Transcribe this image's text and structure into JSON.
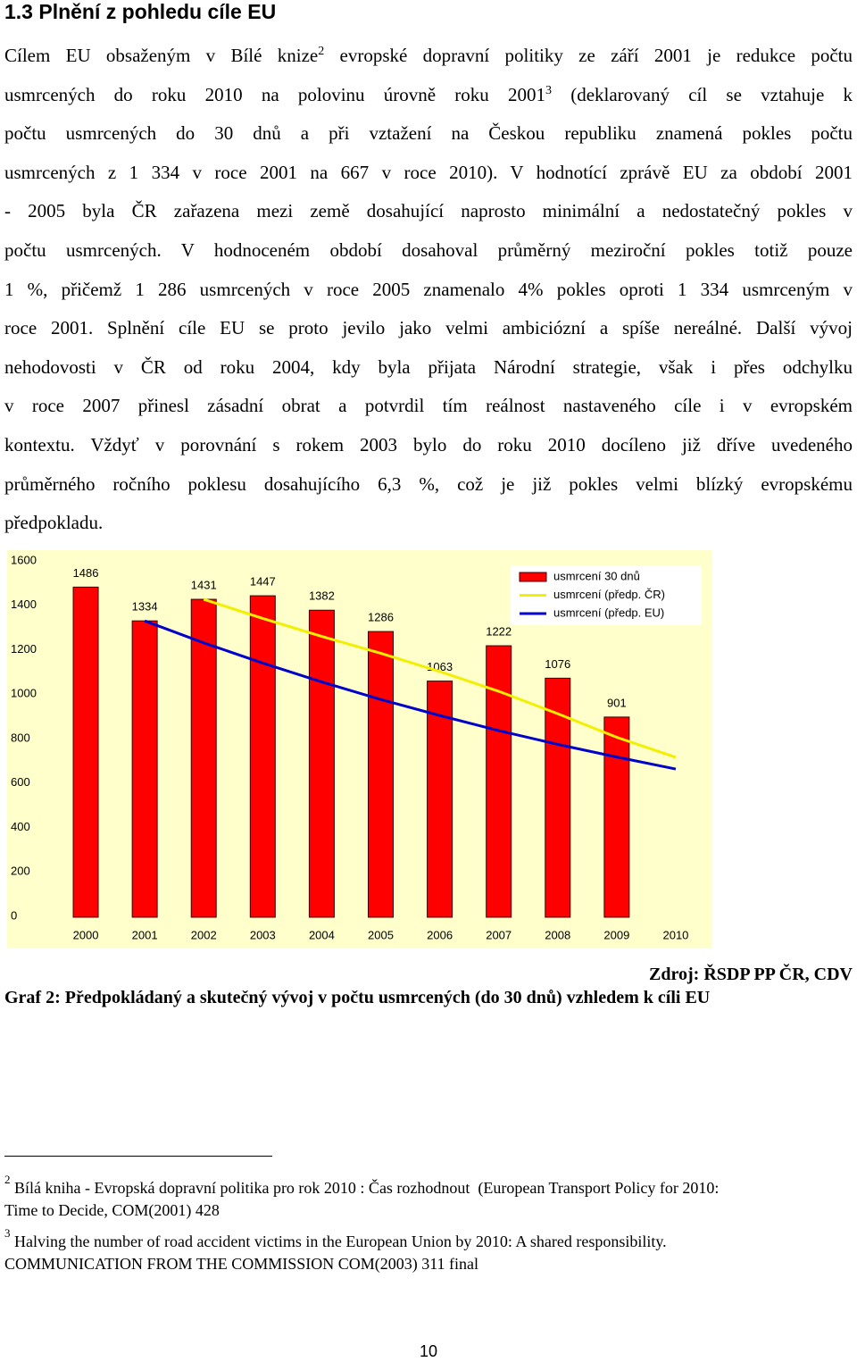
{
  "heading": "1.3 Plnění z pohledu cíle EU",
  "paragraph": {
    "lines": [
      [
        "Cílem EU obsaženým v Bílé knize",
        {
          "sup": "2"
        },
        " evropské dopravní politiky ze září 2001 je redukce počtu"
      ],
      [
        "usmrcených do roku 2010 na polovinu úrovně roku 2001",
        {
          "sup": "3"
        },
        " (deklarovaný cíl se vztahuje k"
      ],
      [
        "počtu usmrcených do 30 dnů a při vztažení na Českou republiku znamená pokles počtu"
      ],
      [
        "usmrcených z 1 334 v roce 2001 na 667 v roce 2010). V hodnotící zprávě EU za období 2001"
      ],
      [
        "- 2005 byla ČR zařazena mezi země dosahující naprosto minimální a nedostatečný pokles v"
      ],
      [
        "počtu usmrcených. V hodnoceném období dosahoval průměrný meziroční pokles totiž pouze"
      ],
      [
        "1 %, přičemž 1 286 usmrcených v roce 2005 znamenalo 4% pokles oproti 1 334 usmrceným v"
      ],
      [
        "roce 2001. Splnění cíle EU se proto jevilo jako velmi ambiciózní a spíše nereálné. Další vývoj"
      ],
      [
        "nehodovosti v ČR od roku 2004, kdy byla přijata Národní strategie, však i přes odchylku"
      ],
      [
        "v roce 2007 přinesl zásadní obrat a potvrdil tím reálnost nastaveného cíle i v evropském"
      ],
      [
        "kontextu. Vždyť v porovnání s rokem 2003 bylo do roku 2010 docíleno již dříve uvedeného"
      ],
      [
        "průměrného ročního poklesu dosahujícího 6,3 %, což je již pokles velmi blízký evropskému"
      ],
      [
        "předpokladu."
      ]
    ]
  },
  "chart_data": {
    "type": "bar",
    "categories": [
      "2000",
      "2001",
      "2002",
      "2003",
      "2004",
      "2005",
      "2006",
      "2007",
      "2008",
      "2009",
      "2010"
    ],
    "series": [
      {
        "name": "usmrcení 30 dnů",
        "type": "bar",
        "color": "#ff0000",
        "values": [
          1486,
          1334,
          1431,
          1447,
          1382,
          1286,
          1063,
          1222,
          1076,
          901,
          null
        ]
      },
      {
        "name": "usmrcení (předp. ČR)",
        "type": "line",
        "color": "#f0f000",
        "values": [
          null,
          null,
          1431,
          1345,
          1264,
          1188,
          1106,
          1017,
          916,
          810,
          720
        ]
      },
      {
        "name": "usmrcení (předp. EU)",
        "type": "line",
        "color": "#0000cc",
        "values": [
          null,
          1334,
          1235,
          1144,
          1059,
          980,
          908,
          840,
          778,
          721,
          667
        ]
      }
    ],
    "ylim": [
      0,
      1600
    ],
    "yticks": [
      0,
      200,
      400,
      600,
      800,
      1000,
      1200,
      1400,
      1600
    ],
    "grid": false,
    "legend": "top-right",
    "background": "#ffffcc"
  },
  "source": "Zdroj: ŘSDP PP ČR, CDV",
  "caption": "Graf 2: Předpokládaný a skutečný vývoj v počtu usmrcených (do 30 dnů) vzhledem k cíli EU",
  "footnotes": [
    {
      "mark": "2",
      "lines": [
        "Bílá kniha - Evropská dopravní politika pro rok 2010 : Čas rozhodnout  (European Transport Policy for 2010:",
        "Time to Decide, COM(2001) 428"
      ]
    },
    {
      "mark": "3",
      "lines": [
        "Halving the number of road accident victims in the European Union by 2010: A shared responsibility.",
        "COMMUNICATION FROM THE COMMISSION COM(2003) 311 final"
      ]
    }
  ],
  "page_number": "10"
}
